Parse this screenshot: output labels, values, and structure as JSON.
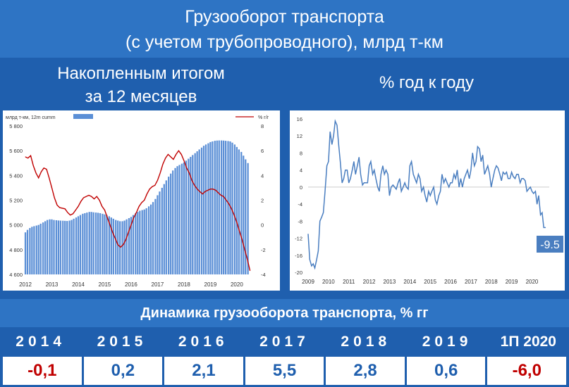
{
  "header": {
    "line1": "Грузооборот транспорта",
    "line2": "(с учетом трубопроводного), млрд т-км"
  },
  "subtitles": {
    "left_line1": "Накопленным итогом",
    "left_line2": "за 12 месяцев",
    "right": "% год к году"
  },
  "colors": {
    "bar": "#5b8fd6",
    "line_red": "#c00000",
    "line_blue": "#4a7ec0",
    "negative": "#c00000",
    "positive": "#1f5fae"
  },
  "chart_data": [
    {
      "type": "bar",
      "legend": {
        "bars": "млрд т-км, 12m cumm",
        "line": "% г/г"
      },
      "x_labels": [
        "2012",
        "2013",
        "2014",
        "2015",
        "2016",
        "2017",
        "2018",
        "2019",
        "2020"
      ],
      "yleft_ticks": [
        "5 800",
        "5 600",
        "5 400",
        "5 200",
        "5 000",
        "4 800",
        "4 600"
      ],
      "yright_ticks": [
        "8",
        "6",
        "4",
        "2",
        "0",
        "-2",
        "-4"
      ],
      "ylim_left": [
        4600,
        5800
      ],
      "ylim_right": [
        -4,
        8
      ],
      "x_range": [
        2012.0,
        2020.75
      ],
      "bars_12m": [
        [
          2012.0,
          4940
        ],
        [
          2012.08,
          4960
        ],
        [
          2012.17,
          4975
        ],
        [
          2012.25,
          4985
        ],
        [
          2012.33,
          4990
        ],
        [
          2012.42,
          4995
        ],
        [
          2012.5,
          5000
        ],
        [
          2012.58,
          5010
        ],
        [
          2012.67,
          5020
        ],
        [
          2012.75,
          5030
        ],
        [
          2012.83,
          5040
        ],
        [
          2012.92,
          5045
        ],
        [
          2013.0,
          5045
        ],
        [
          2013.08,
          5040
        ],
        [
          2013.17,
          5038
        ],
        [
          2013.25,
          5036
        ],
        [
          2013.33,
          5035
        ],
        [
          2013.42,
          5034
        ],
        [
          2013.5,
          5033
        ],
        [
          2013.58,
          5032
        ],
        [
          2013.67,
          5035
        ],
        [
          2013.75,
          5040
        ],
        [
          2013.83,
          5050
        ],
        [
          2013.92,
          5060
        ],
        [
          2014.0,
          5070
        ],
        [
          2014.08,
          5080
        ],
        [
          2014.17,
          5090
        ],
        [
          2014.25,
          5095
        ],
        [
          2014.33,
          5100
        ],
        [
          2014.42,
          5105
        ],
        [
          2014.5,
          5105
        ],
        [
          2014.58,
          5102
        ],
        [
          2014.67,
          5100
        ],
        [
          2014.75,
          5098
        ],
        [
          2014.83,
          5095
        ],
        [
          2014.92,
          5090
        ],
        [
          2015.0,
          5085
        ],
        [
          2015.08,
          5080
        ],
        [
          2015.17,
          5070
        ],
        [
          2015.25,
          5060
        ],
        [
          2015.33,
          5050
        ],
        [
          2015.42,
          5040
        ],
        [
          2015.5,
          5035
        ],
        [
          2015.58,
          5030
        ],
        [
          2015.67,
          5030
        ],
        [
          2015.75,
          5035
        ],
        [
          2015.83,
          5045
        ],
        [
          2015.92,
          5055
        ],
        [
          2016.0,
          5065
        ],
        [
          2016.08,
          5080
        ],
        [
          2016.17,
          5095
        ],
        [
          2016.25,
          5105
        ],
        [
          2016.33,
          5115
        ],
        [
          2016.42,
          5120
        ],
        [
          2016.5,
          5125
        ],
        [
          2016.58,
          5135
        ],
        [
          2016.67,
          5150
        ],
        [
          2016.75,
          5165
        ],
        [
          2016.83,
          5185
        ],
        [
          2016.92,
          5210
        ],
        [
          2017.0,
          5240
        ],
        [
          2017.08,
          5270
        ],
        [
          2017.17,
          5300
        ],
        [
          2017.25,
          5330
        ],
        [
          2017.33,
          5360
        ],
        [
          2017.42,
          5390
        ],
        [
          2017.5,
          5415
        ],
        [
          2017.58,
          5440
        ],
        [
          2017.67,
          5460
        ],
        [
          2017.75,
          5475
        ],
        [
          2017.83,
          5485
        ],
        [
          2017.92,
          5495
        ],
        [
          2018.0,
          5505
        ],
        [
          2018.08,
          5520
        ],
        [
          2018.17,
          5535
        ],
        [
          2018.25,
          5550
        ],
        [
          2018.33,
          5565
        ],
        [
          2018.42,
          5580
        ],
        [
          2018.5,
          5595
        ],
        [
          2018.58,
          5610
        ],
        [
          2018.67,
          5625
        ],
        [
          2018.75,
          5640
        ],
        [
          2018.83,
          5650
        ],
        [
          2018.92,
          5660
        ],
        [
          2019.0,
          5670
        ],
        [
          2019.08,
          5675
        ],
        [
          2019.17,
          5680
        ],
        [
          2019.25,
          5682
        ],
        [
          2019.33,
          5683
        ],
        [
          2019.42,
          5683
        ],
        [
          2019.5,
          5682
        ],
        [
          2019.58,
          5680
        ],
        [
          2019.67,
          5678
        ],
        [
          2019.75,
          5675
        ],
        [
          2019.83,
          5665
        ],
        [
          2019.92,
          5650
        ],
        [
          2020.0,
          5630
        ],
        [
          2020.08,
          5610
        ],
        [
          2020.17,
          5590
        ],
        [
          2020.25,
          5560
        ],
        [
          2020.33,
          5530
        ],
        [
          2020.42,
          5500
        ]
      ],
      "line_yoy": [
        [
          2012.0,
          5.5
        ],
        [
          2012.1,
          5.4
        ],
        [
          2012.2,
          5.6
        ],
        [
          2012.3,
          4.8
        ],
        [
          2012.4,
          4.2
        ],
        [
          2012.5,
          3.8
        ],
        [
          2012.6,
          4.3
        ],
        [
          2012.7,
          4.6
        ],
        [
          2012.8,
          4.5
        ],
        [
          2012.9,
          3.8
        ],
        [
          2013.0,
          3.0
        ],
        [
          2013.1,
          2.2
        ],
        [
          2013.2,
          1.6
        ],
        [
          2013.3,
          1.4
        ],
        [
          2013.5,
          1.3
        ],
        [
          2013.6,
          1.0
        ],
        [
          2013.7,
          0.8
        ],
        [
          2013.8,
          0.9
        ],
        [
          2013.9,
          1.2
        ],
        [
          2014.0,
          1.5
        ],
        [
          2014.1,
          1.9
        ],
        [
          2014.2,
          2.2
        ],
        [
          2014.3,
          2.3
        ],
        [
          2014.4,
          2.4
        ],
        [
          2014.5,
          2.3
        ],
        [
          2014.6,
          2.1
        ],
        [
          2014.7,
          2.3
        ],
        [
          2014.8,
          2.0
        ],
        [
          2014.9,
          1.5
        ],
        [
          2015.0,
          1.2
        ],
        [
          2015.1,
          0.6
        ],
        [
          2015.2,
          0.0
        ],
        [
          2015.3,
          -0.6
        ],
        [
          2015.4,
          -1.1
        ],
        [
          2015.5,
          -1.6
        ],
        [
          2015.6,
          -1.8
        ],
        [
          2015.7,
          -1.6
        ],
        [
          2015.8,
          -1.2
        ],
        [
          2015.9,
          -0.6
        ],
        [
          2016.0,
          0.0
        ],
        [
          2016.1,
          0.6
        ],
        [
          2016.2,
          1.0
        ],
        [
          2016.3,
          1.5
        ],
        [
          2016.4,
          1.8
        ],
        [
          2016.5,
          2.0
        ],
        [
          2016.6,
          2.5
        ],
        [
          2016.7,
          2.9
        ],
        [
          2016.8,
          3.1
        ],
        [
          2016.9,
          3.2
        ],
        [
          2017.0,
          3.6
        ],
        [
          2017.1,
          4.2
        ],
        [
          2017.2,
          4.9
        ],
        [
          2017.3,
          5.4
        ],
        [
          2017.4,
          5.7
        ],
        [
          2017.5,
          5.5
        ],
        [
          2017.6,
          5.3
        ],
        [
          2017.7,
          5.7
        ],
        [
          2017.8,
          6.0
        ],
        [
          2017.9,
          5.7
        ],
        [
          2018.0,
          5.2
        ],
        [
          2018.1,
          4.6
        ],
        [
          2018.2,
          4.2
        ],
        [
          2018.3,
          3.6
        ],
        [
          2018.4,
          3.2
        ],
        [
          2018.5,
          2.9
        ],
        [
          2018.6,
          2.7
        ],
        [
          2018.7,
          2.5
        ],
        [
          2018.8,
          2.7
        ],
        [
          2018.9,
          2.8
        ],
        [
          2019.0,
          2.9
        ],
        [
          2019.1,
          2.9
        ],
        [
          2019.2,
          2.8
        ],
        [
          2019.3,
          2.6
        ],
        [
          2019.4,
          2.4
        ],
        [
          2019.5,
          2.3
        ],
        [
          2019.6,
          2.0
        ],
        [
          2019.7,
          1.7
        ],
        [
          2019.8,
          1.3
        ],
        [
          2019.9,
          0.8
        ],
        [
          2020.0,
          0.2
        ],
        [
          2020.1,
          -0.5
        ],
        [
          2020.2,
          -1.2
        ],
        [
          2020.3,
          -2.0
        ],
        [
          2020.4,
          -2.8
        ],
        [
          2020.5,
          -3.7
        ]
      ]
    },
    {
      "type": "line",
      "x_labels": [
        "2009",
        "2010",
        "2011",
        "2012",
        "2013",
        "2014",
        "2015",
        "2016",
        "2017",
        "2018",
        "2019",
        "2020"
      ],
      "y_ticks": [
        "16",
        "12",
        "8",
        "4",
        "0",
        "-4",
        "-8",
        "-12",
        "-16",
        "-20"
      ],
      "ylim": [
        -20,
        16
      ],
      "x_range": [
        2009.0,
        2020.85
      ],
      "end_label": "-9.5",
      "values": [
        [
          2009.0,
          -11
        ],
        [
          2009.08,
          -17
        ],
        [
          2009.17,
          -18.5
        ],
        [
          2009.25,
          -18
        ],
        [
          2009.33,
          -19
        ],
        [
          2009.42,
          -17
        ],
        [
          2009.5,
          -15
        ],
        [
          2009.58,
          -8
        ],
        [
          2009.67,
          -7
        ],
        [
          2009.75,
          -6
        ],
        [
          2009.83,
          -1
        ],
        [
          2009.92,
          5
        ],
        [
          2010.0,
          6
        ],
        [
          2010.08,
          13
        ],
        [
          2010.17,
          10
        ],
        [
          2010.25,
          12
        ],
        [
          2010.33,
          15.5
        ],
        [
          2010.42,
          14.5
        ],
        [
          2010.5,
          10
        ],
        [
          2010.58,
          6
        ],
        [
          2010.67,
          1
        ],
        [
          2010.75,
          2
        ],
        [
          2010.83,
          4
        ],
        [
          2010.92,
          4
        ],
        [
          2011.0,
          1
        ],
        [
          2011.08,
          2
        ],
        [
          2011.17,
          4
        ],
        [
          2011.25,
          6
        ],
        [
          2011.33,
          3
        ],
        [
          2011.42,
          5
        ],
        [
          2011.5,
          7
        ],
        [
          2011.58,
          3
        ],
        [
          2011.67,
          0.5
        ],
        [
          2011.75,
          1
        ],
        [
          2011.83,
          1
        ],
        [
          2011.92,
          1
        ],
        [
          2012.0,
          5
        ],
        [
          2012.08,
          6
        ],
        [
          2012.17,
          3
        ],
        [
          2012.25,
          4
        ],
        [
          2012.33,
          2
        ],
        [
          2012.42,
          0
        ],
        [
          2012.5,
          -1
        ],
        [
          2012.58,
          3
        ],
        [
          2012.67,
          5
        ],
        [
          2012.75,
          3
        ],
        [
          2012.83,
          4
        ],
        [
          2012.92,
          3
        ],
        [
          2013.0,
          -2
        ],
        [
          2013.08,
          0
        ],
        [
          2013.17,
          0.5
        ],
        [
          2013.25,
          0
        ],
        [
          2013.33,
          -0.5
        ],
        [
          2013.42,
          1
        ],
        [
          2013.5,
          2
        ],
        [
          2013.58,
          -1
        ],
        [
          2013.67,
          0
        ],
        [
          2013.75,
          1
        ],
        [
          2013.83,
          0
        ],
        [
          2013.92,
          -0.5
        ],
        [
          2014.0,
          5
        ],
        [
          2014.08,
          6
        ],
        [
          2014.17,
          3
        ],
        [
          2014.25,
          2
        ],
        [
          2014.33,
          1
        ],
        [
          2014.42,
          3
        ],
        [
          2014.5,
          2
        ],
        [
          2014.58,
          -1
        ],
        [
          2014.67,
          0
        ],
        [
          2014.75,
          -2
        ],
        [
          2014.83,
          -3.5
        ],
        [
          2014.92,
          -1
        ],
        [
          2015.0,
          -2
        ],
        [
          2015.08,
          -1
        ],
        [
          2015.17,
          0
        ],
        [
          2015.25,
          -3
        ],
        [
          2015.33,
          -4
        ],
        [
          2015.42,
          -2
        ],
        [
          2015.5,
          -1
        ],
        [
          2015.58,
          3
        ],
        [
          2015.67,
          1
        ],
        [
          2015.75,
          2
        ],
        [
          2015.83,
          1
        ],
        [
          2015.92,
          0
        ],
        [
          2016.0,
          1
        ],
        [
          2016.08,
          1
        ],
        [
          2016.17,
          3
        ],
        [
          2016.25,
          2
        ],
        [
          2016.33,
          4
        ],
        [
          2016.42,
          0
        ],
        [
          2016.5,
          2
        ],
        [
          2016.58,
          0
        ],
        [
          2016.67,
          2
        ],
        [
          2016.75,
          3
        ],
        [
          2016.83,
          4
        ],
        [
          2016.92,
          2
        ],
        [
          2017.0,
          4
        ],
        [
          2017.08,
          8
        ],
        [
          2017.17,
          5
        ],
        [
          2017.25,
          6
        ],
        [
          2017.33,
          9.5
        ],
        [
          2017.42,
          9
        ],
        [
          2017.5,
          6
        ],
        [
          2017.58,
          7.5
        ],
        [
          2017.67,
          3
        ],
        [
          2017.75,
          4
        ],
        [
          2017.83,
          5
        ],
        [
          2017.92,
          3
        ],
        [
          2018.0,
          0
        ],
        [
          2018.08,
          2
        ],
        [
          2018.17,
          4
        ],
        [
          2018.25,
          5
        ],
        [
          2018.33,
          4.5
        ],
        [
          2018.42,
          3
        ],
        [
          2018.5,
          1.5
        ],
        [
          2018.58,
          3.5
        ],
        [
          2018.67,
          3
        ],
        [
          2018.75,
          3.5
        ],
        [
          2018.83,
          2
        ],
        [
          2018.92,
          2
        ],
        [
          2019.0,
          3.5
        ],
        [
          2019.08,
          2.5
        ],
        [
          2019.17,
          2
        ],
        [
          2019.25,
          3
        ],
        [
          2019.33,
          3
        ],
        [
          2019.42,
          1
        ],
        [
          2019.5,
          2
        ],
        [
          2019.58,
          2
        ],
        [
          2019.67,
          1.5
        ],
        [
          2019.75,
          -1
        ],
        [
          2019.83,
          -0.5
        ],
        [
          2019.92,
          0
        ],
        [
          2020.0,
          -1
        ],
        [
          2020.08,
          -1.5
        ],
        [
          2020.17,
          -1
        ],
        [
          2020.25,
          -4
        ],
        [
          2020.33,
          -2
        ],
        [
          2020.42,
          -6.5
        ],
        [
          2020.5,
          -6
        ],
        [
          2020.58,
          -9.5
        ],
        [
          2020.67,
          -9.5
        ]
      ]
    }
  ],
  "table": {
    "title": "Динамика грузооборота транспорта, % гг",
    "years": [
      "2014",
      "2015",
      "2016",
      "2017",
      "2018",
      "2019",
      "1П 2020"
    ],
    "values": [
      "-0,1",
      "0,2",
      "2,1",
      "5,5",
      "2,8",
      "0,6",
      "-6,0"
    ],
    "value_signs": [
      "neg",
      "pos",
      "pos",
      "pos",
      "pos",
      "pos",
      "neg"
    ]
  }
}
